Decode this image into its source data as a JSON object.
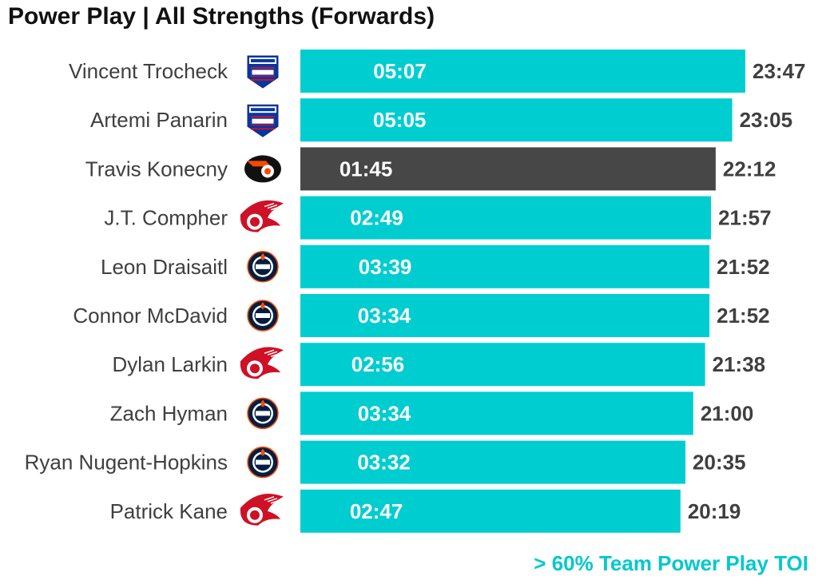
{
  "chart_data": {
    "type": "bar",
    "orientation": "horizontal",
    "title": "Power Play | All Strengths (Forwards)",
    "legend_note": "> 60% Team Power Play TOI",
    "xlabel": "",
    "ylabel": "",
    "unit": "minutes",
    "highlight_color": "#00CDD0",
    "other_color": "#474747",
    "players": [
      {
        "name": "Vincent Trocheck",
        "team_logo": "rangers-logo-icon",
        "total": "23:47",
        "total_minutes": 23.783,
        "pp": "05:07",
        "pp_minutes": 5.117,
        "over_60_pct": true
      },
      {
        "name": "Artemi Panarin",
        "team_logo": "rangers-logo-icon",
        "total": "23:05",
        "total_minutes": 23.083,
        "pp": "05:05",
        "pp_minutes": 5.083,
        "over_60_pct": true
      },
      {
        "name": "Travis Konecny",
        "team_logo": "flyers-logo-icon",
        "total": "22:12",
        "total_minutes": 22.2,
        "pp": "01:45",
        "pp_minutes": 1.75,
        "over_60_pct": false
      },
      {
        "name": "J.T. Compher",
        "team_logo": "red-wings-logo-icon",
        "total": "21:57",
        "total_minutes": 21.95,
        "pp": "02:49",
        "pp_minutes": 2.817,
        "over_60_pct": true
      },
      {
        "name": "Leon Draisaitl",
        "team_logo": "oilers-logo-icon",
        "total": "21:52",
        "total_minutes": 21.867,
        "pp": "03:39",
        "pp_minutes": 3.65,
        "over_60_pct": true
      },
      {
        "name": "Connor McDavid",
        "team_logo": "oilers-logo-icon",
        "total": "21:52",
        "total_minutes": 21.867,
        "pp": "03:34",
        "pp_minutes": 3.567,
        "over_60_pct": true
      },
      {
        "name": "Dylan Larkin",
        "team_logo": "red-wings-logo-icon",
        "total": "21:38",
        "total_minutes": 21.633,
        "pp": "02:56",
        "pp_minutes": 2.933,
        "over_60_pct": true
      },
      {
        "name": "Zach Hyman",
        "team_logo": "oilers-logo-icon",
        "total": "21:00",
        "total_minutes": 21.0,
        "pp": "03:34",
        "pp_minutes": 3.567,
        "over_60_pct": true
      },
      {
        "name": "Ryan Nugent-Hopkins",
        "team_logo": "oilers-logo-icon",
        "total": "20:35",
        "total_minutes": 20.583,
        "pp": "03:32",
        "pp_minutes": 3.533,
        "over_60_pct": true
      },
      {
        "name": "Patrick Kane",
        "team_logo": "red-wings-logo-icon",
        "total": "20:19",
        "total_minutes": 20.317,
        "pp": "02:47",
        "pp_minutes": 2.783,
        "over_60_pct": true
      }
    ],
    "xlim": [
      0,
      23.783
    ]
  }
}
